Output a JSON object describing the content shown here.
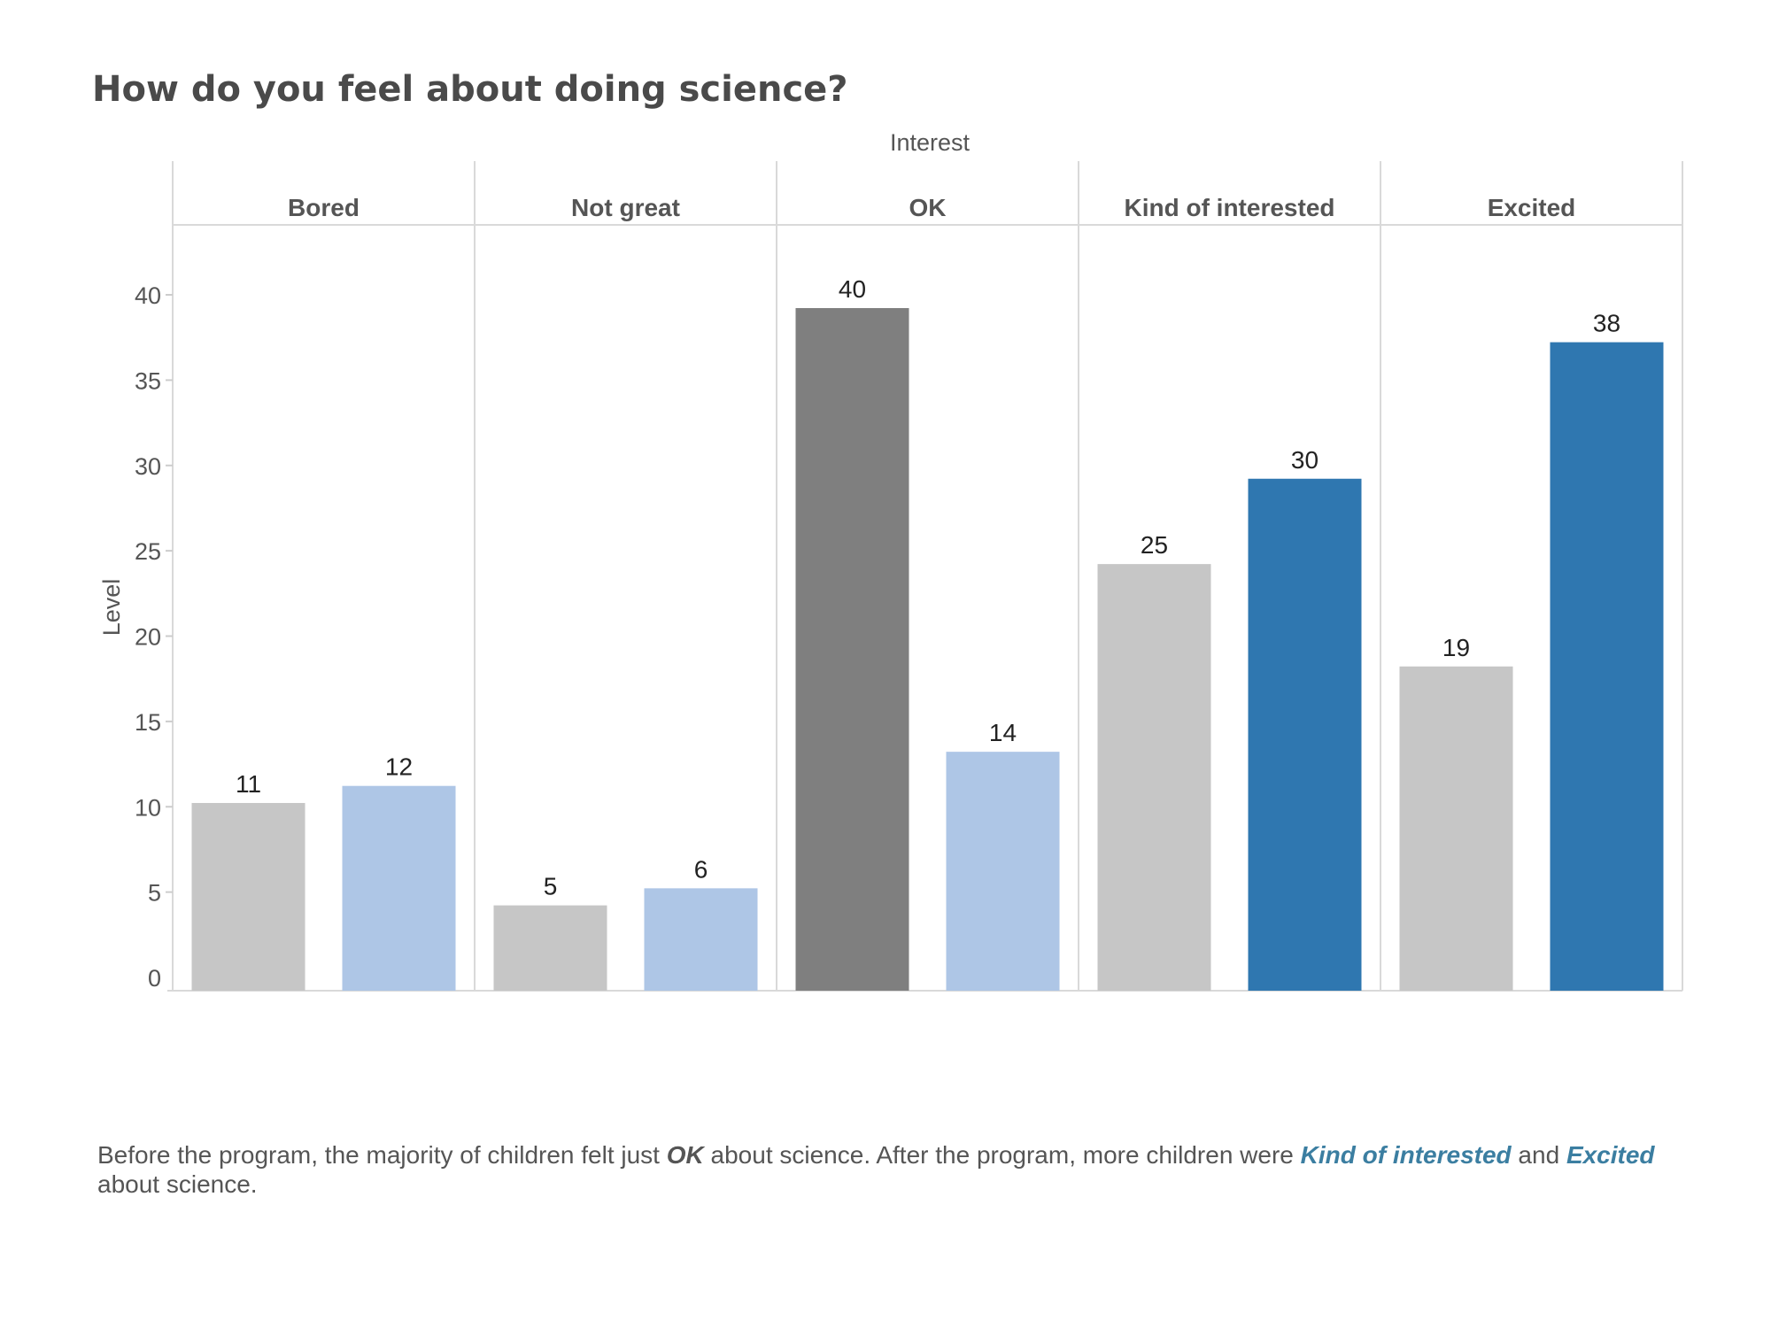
{
  "title": "How do you feel about doing science?",
  "chart_data": {
    "type": "bar",
    "column_header": "Interest",
    "ylabel": "Level",
    "ylim": [
      0,
      43
    ],
    "yticks": [
      0,
      5,
      10,
      15,
      20,
      25,
      30,
      35,
      40
    ],
    "categories": [
      "Bored",
      "Not great",
      "OK",
      "Kind of interested",
      "Excited"
    ],
    "series": [
      {
        "values": [
          11,
          5,
          40,
          25,
          19
        ],
        "colors": [
          "#c6c6c6",
          "#c6c6c6",
          "#7f7f7f",
          "#c6c6c6",
          "#c6c6c6"
        ]
      },
      {
        "values": [
          12,
          6,
          14,
          30,
          38
        ],
        "colors": [
          "#aec6e6",
          "#aec6e6",
          "#aec6e6",
          "#2f77b0",
          "#2f77b0"
        ]
      }
    ],
    "grid": false,
    "legend": "none"
  },
  "caption": {
    "part1": "Before the program, the majority of children felt just ",
    "em1": "OK",
    "part2": " about science. After the program, more children were ",
    "em2": "Kind of interested",
    "part3": " and ",
    "em3": "Excited",
    "part4": " about science."
  },
  "colors": {
    "title": "#4a4a4a",
    "axis_text": "#555555",
    "divider": "#d9d9d9",
    "highlight_blue": "#3b7ea1"
  }
}
